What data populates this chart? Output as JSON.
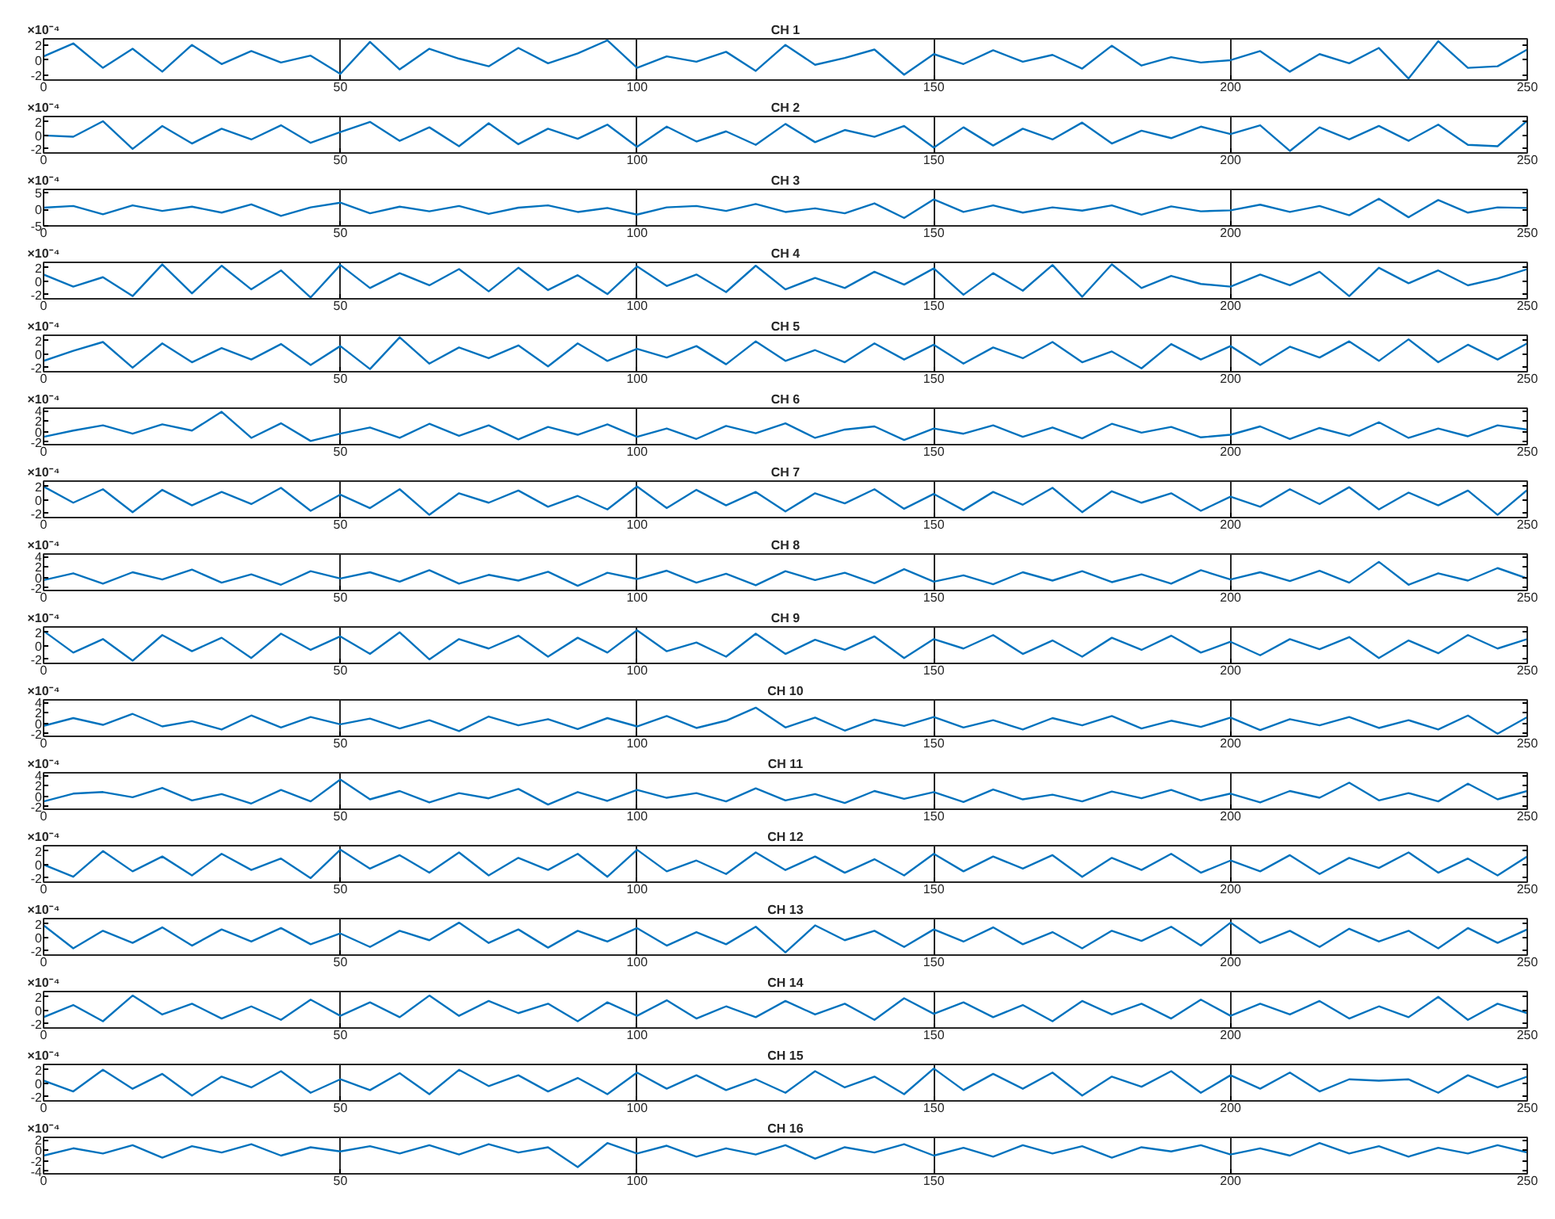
{
  "chart_data": [
    {
      "type": "line",
      "title": "CH 1",
      "annotations": [
        "×10⁻⁴"
      ],
      "grid": "x",
      "xlim": [
        0,
        250
      ],
      "xticks": [
        0,
        50,
        100,
        150,
        200,
        250
      ],
      "ylim": [
        -2.6,
        2.8
      ],
      "yticks": [
        -2,
        0,
        2
      ],
      "x": [
        0,
        5,
        10,
        15,
        20,
        25,
        30,
        35,
        40,
        45,
        50,
        55,
        60,
        65,
        70,
        75,
        80,
        85,
        90,
        95,
        100,
        105,
        110,
        115,
        120,
        125,
        130,
        135,
        140,
        145,
        150,
        155,
        160,
        165,
        170,
        175,
        180,
        185,
        190,
        195,
        200,
        205,
        210,
        215,
        220,
        225,
        230,
        235,
        240,
        245,
        250
      ],
      "series": [
        {
          "color": "#0072bd",
          "values": [
            0.5,
            2.2,
            -1.0,
            1.5,
            -1.5,
            2.0,
            -0.5,
            1.2,
            -0.3,
            0.6,
            -1.8,
            2.4,
            -1.2,
            1.5,
            0.2,
            -0.8,
            1.6,
            -0.4,
            0.9,
            2.6,
            -1.0,
            0.5,
            -0.2,
            1.1,
            -1.4,
            2.0,
            -0.6,
            0.3,
            1.4,
            -1.9,
            0.8,
            -0.5,
            1.3,
            -0.2,
            0.7,
            -1.1,
            1.9,
            -0.7,
            0.4,
            -0.3,
            0.0,
            1.2,
            -1.5,
            0.8,
            -0.4,
            1.6,
            -2.4,
            2.5,
            -1.0,
            -0.8,
            1.4
          ]
        }
      ]
    },
    {
      "type": "line",
      "title": "CH 2",
      "annotations": [
        "×10⁻⁴"
      ],
      "grid": "x",
      "xlim": [
        0,
        250
      ],
      "xticks": [
        0,
        50,
        100,
        150,
        200,
        250
      ],
      "ylim": [
        -2.6,
        2.8
      ],
      "yticks": [
        -2,
        0,
        2
      ],
      "x": [
        0,
        5,
        10,
        15,
        20,
        25,
        30,
        35,
        40,
        45,
        50,
        55,
        60,
        65,
        70,
        75,
        80,
        85,
        90,
        95,
        100,
        105,
        110,
        115,
        120,
        125,
        130,
        135,
        140,
        145,
        150,
        155,
        160,
        165,
        170,
        175,
        180,
        185,
        190,
        195,
        200,
        205,
        210,
        215,
        220,
        225,
        230,
        235,
        240,
        245,
        250
      ],
      "series": [
        {
          "color": "#0072bd",
          "values": [
            0.0,
            -0.2,
            2.1,
            -2.0,
            1.4,
            -1.2,
            1.0,
            -0.6,
            1.5,
            -1.1,
            0.5,
            2.0,
            -0.8,
            1.2,
            -1.6,
            1.8,
            -1.3,
            1.0,
            -0.5,
            1.6,
            -1.7,
            1.3,
            -0.9,
            0.6,
            -1.4,
            1.7,
            -1.0,
            0.8,
            -0.2,
            1.4,
            -1.8,
            1.2,
            -1.5,
            1.0,
            -0.6,
            1.9,
            -1.2,
            0.7,
            -0.4,
            1.3,
            0.2,
            1.5,
            -2.3,
            1.2,
            -0.6,
            1.4,
            -0.8,
            1.6,
            -1.4,
            -1.6,
            2.2
          ]
        }
      ]
    },
    {
      "type": "line",
      "title": "CH 3",
      "annotations": [
        "×10⁻⁴"
      ],
      "grid": "x",
      "xlim": [
        0,
        250
      ],
      "xticks": [
        0,
        50,
        100,
        150,
        200,
        250
      ],
      "ylim": [
        -5,
        6
      ],
      "yticks": [
        -5,
        0,
        5
      ],
      "x": [
        0,
        5,
        10,
        15,
        20,
        25,
        30,
        35,
        40,
        45,
        50,
        55,
        60,
        65,
        70,
        75,
        80,
        85,
        90,
        95,
        100,
        105,
        110,
        115,
        120,
        125,
        130,
        135,
        140,
        145,
        150,
        155,
        160,
        165,
        170,
        175,
        180,
        185,
        190,
        195,
        200,
        205,
        210,
        215,
        220,
        225,
        230,
        235,
        240,
        245,
        250
      ],
      "series": [
        {
          "color": "#0072bd",
          "values": [
            0.5,
            1.0,
            -1.5,
            1.2,
            -0.5,
            0.8,
            -1.0,
            1.5,
            -2.0,
            0.6,
            2.0,
            -1.2,
            0.8,
            -0.6,
            1.0,
            -1.4,
            0.5,
            1.2,
            -0.8,
            0.4,
            -1.6,
            0.6,
            1.0,
            -0.5,
            1.6,
            -0.8,
            0.3,
            -1.2,
            1.8,
            -2.6,
            3.0,
            -0.8,
            1.2,
            -1.0,
            0.6,
            -0.4,
            1.2,
            -1.6,
            0.9,
            -0.6,
            -0.3,
            1.4,
            -0.8,
            1.0,
            -1.8,
            3.2,
            -2.4,
            2.8,
            -1.0,
            0.6,
            0.4
          ]
        }
      ]
    },
    {
      "type": "line",
      "title": "CH 4",
      "annotations": [
        "×10⁻⁴"
      ],
      "grid": "x",
      "xlim": [
        0,
        250
      ],
      "xticks": [
        0,
        50,
        100,
        150,
        200,
        250
      ],
      "ylim": [
        -2.6,
        2.8
      ],
      "yticks": [
        -2,
        0,
        2
      ],
      "x": [
        0,
        5,
        10,
        15,
        20,
        25,
        30,
        35,
        40,
        45,
        50,
        55,
        60,
        65,
        70,
        75,
        80,
        85,
        90,
        95,
        100,
        105,
        110,
        115,
        120,
        125,
        130,
        135,
        140,
        145,
        150,
        155,
        160,
        165,
        170,
        175,
        180,
        185,
        190,
        195,
        200,
        205,
        210,
        215,
        220,
        225,
        230,
        235,
        240,
        245,
        250
      ],
      "series": [
        {
          "color": "#0072bd",
          "values": [
            1.0,
            -0.8,
            0.6,
            -2.2,
            2.5,
            -1.8,
            2.3,
            -1.2,
            1.6,
            -2.4,
            2.4,
            -1.0,
            1.2,
            -0.6,
            1.8,
            -1.5,
            2.0,
            -1.3,
            0.9,
            -1.9,
            2.2,
            -0.7,
            1.0,
            -1.6,
            2.3,
            -1.2,
            0.5,
            -1.0,
            1.4,
            -0.5,
            1.9,
            -2.0,
            1.2,
            -1.4,
            2.4,
            -2.3,
            2.5,
            -1.0,
            0.8,
            -0.4,
            -0.8,
            1.0,
            -0.6,
            1.4,
            -2.2,
            2.0,
            -0.3,
            1.6,
            -0.6,
            0.4,
            1.8
          ]
        }
      ]
    },
    {
      "type": "line",
      "title": "CH 5",
      "annotations": [
        "×10⁻⁴"
      ],
      "grid": "x",
      "xlim": [
        0,
        250
      ],
      "xticks": [
        0,
        50,
        100,
        150,
        200,
        250
      ],
      "ylim": [
        -2.6,
        2.8
      ],
      "yticks": [
        -2,
        0,
        2
      ],
      "x": [
        0,
        5,
        10,
        15,
        20,
        25,
        30,
        35,
        40,
        45,
        50,
        55,
        60,
        65,
        70,
        75,
        80,
        85,
        90,
        95,
        100,
        105,
        110,
        115,
        120,
        125,
        130,
        135,
        140,
        145,
        150,
        155,
        160,
        165,
        170,
        175,
        180,
        185,
        190,
        195,
        200,
        205,
        210,
        215,
        220,
        225,
        230,
        235,
        240,
        245,
        250
      ],
      "series": [
        {
          "color": "#0072bd",
          "values": [
            -1.0,
            0.5,
            1.8,
            -2.0,
            1.6,
            -1.2,
            0.9,
            -0.8,
            1.5,
            -1.6,
            1.2,
            -2.2,
            2.5,
            -1.4,
            1.0,
            -0.6,
            1.3,
            -1.8,
            1.6,
            -1.0,
            0.8,
            -0.5,
            1.2,
            -1.5,
            1.9,
            -1.0,
            0.6,
            -1.2,
            1.6,
            -0.8,
            1.4,
            -1.4,
            1.0,
            -0.6,
            1.8,
            -1.2,
            0.4,
            -2.1,
            1.5,
            -0.8,
            1.2,
            -1.6,
            1.1,
            -0.5,
            1.9,
            -1.0,
            2.2,
            -1.2,
            1.4,
            -0.8,
            1.6
          ]
        }
      ]
    },
    {
      "type": "line",
      "title": "CH 6",
      "annotations": [
        "×10⁻⁴"
      ],
      "grid": "x",
      "xlim": [
        0,
        250
      ],
      "xticks": [
        0,
        50,
        100,
        150,
        200,
        250
      ],
      "ylim": [
        -2.5,
        4.5
      ],
      "yticks": [
        -2,
        0,
        2,
        4
      ],
      "x": [
        0,
        5,
        10,
        15,
        20,
        25,
        30,
        35,
        40,
        45,
        50,
        55,
        60,
        65,
        70,
        75,
        80,
        85,
        90,
        95,
        100,
        105,
        110,
        115,
        120,
        125,
        130,
        135,
        140,
        145,
        150,
        155,
        160,
        165,
        170,
        175,
        180,
        185,
        190,
        195,
        200,
        205,
        210,
        215,
        220,
        225,
        230,
        235,
        240,
        245,
        250
      ],
      "series": [
        {
          "color": "#0072bd",
          "values": [
            -1.0,
            0.2,
            1.2,
            -0.4,
            1.4,
            0.2,
            3.8,
            -1.2,
            1.6,
            -1.8,
            -0.4,
            0.8,
            -1.2,
            1.5,
            -0.8,
            1.2,
            -1.5,
            0.9,
            -0.6,
            1.4,
            -1.0,
            0.6,
            -1.4,
            1.1,
            -0.3,
            1.6,
            -1.2,
            0.4,
            1.0,
            -1.6,
            0.6,
            -0.4,
            1.2,
            -1.0,
            0.8,
            -1.3,
            1.5,
            -0.2,
            0.9,
            -1.1,
            -0.6,
            1.0,
            -1.4,
            0.7,
            -0.8,
            1.8,
            -1.2,
            0.6,
            -0.9,
            1.2,
            0.4
          ]
        }
      ]
    },
    {
      "type": "line",
      "title": "CH 7",
      "annotations": [
        "×10⁻⁴"
      ],
      "grid": "x",
      "xlim": [
        0,
        250
      ],
      "xticks": [
        0,
        50,
        100,
        150,
        200,
        250
      ],
      "ylim": [
        -2.6,
        2.8
      ],
      "yticks": [
        -2,
        0,
        2
      ],
      "x": [
        0,
        5,
        10,
        15,
        20,
        25,
        30,
        35,
        40,
        45,
        50,
        55,
        60,
        65,
        70,
        75,
        80,
        85,
        90,
        95,
        100,
        105,
        110,
        115,
        120,
        125,
        130,
        135,
        140,
        145,
        150,
        155,
        160,
        165,
        170,
        175,
        180,
        185,
        190,
        195,
        200,
        205,
        210,
        215,
        220,
        225,
        230,
        235,
        240,
        245,
        250
      ],
      "series": [
        {
          "color": "#0072bd",
          "values": [
            2.0,
            -0.4,
            1.6,
            -1.8,
            1.5,
            -0.8,
            1.2,
            -0.6,
            1.8,
            -1.6,
            0.8,
            -1.2,
            1.6,
            -2.2,
            1.0,
            -0.4,
            1.4,
            -1.0,
            0.6,
            -1.4,
            2.0,
            -1.2,
            1.5,
            -0.8,
            1.2,
            -1.7,
            1.0,
            -0.5,
            1.6,
            -1.3,
            0.9,
            -1.5,
            1.2,
            -0.7,
            1.8,
            -1.8,
            1.3,
            -0.4,
            1.0,
            -1.6,
            0.5,
            -1.0,
            1.6,
            -0.6,
            1.9,
            -1.4,
            1.1,
            -0.8,
            1.4,
            -2.2,
            1.5
          ]
        }
      ]
    },
    {
      "type": "line",
      "title": "CH 8",
      "annotations": [
        "×10⁻⁴"
      ],
      "grid": "x",
      "xlim": [
        0,
        250
      ],
      "xticks": [
        0,
        50,
        100,
        150,
        200,
        250
      ],
      "ylim": [
        -2.5,
        4.5
      ],
      "yticks": [
        -2,
        0,
        2,
        4
      ],
      "x": [
        0,
        5,
        10,
        15,
        20,
        25,
        30,
        35,
        40,
        45,
        50,
        55,
        60,
        65,
        70,
        75,
        80,
        85,
        90,
        95,
        100,
        105,
        110,
        115,
        120,
        125,
        130,
        135,
        140,
        145,
        150,
        155,
        160,
        165,
        170,
        175,
        180,
        185,
        190,
        195,
        200,
        205,
        210,
        215,
        220,
        225,
        230,
        235,
        240,
        245,
        250
      ],
      "series": [
        {
          "color": "#0072bd",
          "values": [
            -0.5,
            0.8,
            -1.2,
            1.0,
            -0.4,
            1.5,
            -1.0,
            0.6,
            -1.4,
            1.2,
            -0.2,
            1.0,
            -0.8,
            1.4,
            -1.2,
            0.5,
            -0.6,
            1.1,
            -1.6,
            0.9,
            -0.3,
            1.3,
            -1.0,
            0.7,
            -1.5,
            1.2,
            -0.5,
            0.9,
            -1.1,
            1.6,
            -0.8,
            0.4,
            -1.3,
            1.0,
            -0.6,
            1.2,
            -0.9,
            0.6,
            -1.2,
            1.4,
            -0.4,
            1.0,
            -0.7,
            1.3,
            -1.0,
            3.0,
            -1.4,
            0.8,
            -0.6,
            1.8,
            -0.2
          ]
        }
      ]
    },
    {
      "type": "line",
      "title": "CH 9",
      "annotations": [
        "×10⁻⁴"
      ],
      "grid": "x",
      "xlim": [
        0,
        250
      ],
      "xticks": [
        0,
        50,
        100,
        150,
        200,
        250
      ],
      "ylim": [
        -2.6,
        2.8
      ],
      "yticks": [
        -2,
        0,
        2
      ],
      "x": [
        0,
        5,
        10,
        15,
        20,
        25,
        30,
        35,
        40,
        45,
        50,
        55,
        60,
        65,
        70,
        75,
        80,
        85,
        90,
        95,
        100,
        105,
        110,
        115,
        120,
        125,
        130,
        135,
        140,
        145,
        150,
        155,
        160,
        165,
        170,
        175,
        180,
        185,
        190,
        195,
        200,
        205,
        210,
        215,
        220,
        225,
        230,
        235,
        240,
        245,
        250
      ],
      "series": [
        {
          "color": "#0072bd",
          "values": [
            2.2,
            -1.0,
            1.0,
            -2.2,
            1.6,
            -0.8,
            1.2,
            -1.8,
            1.8,
            -0.6,
            1.4,
            -1.2,
            2.0,
            -2.0,
            1.0,
            -0.4,
            1.5,
            -1.6,
            1.2,
            -1.0,
            2.3,
            -0.8,
            0.5,
            -1.6,
            1.8,
            -1.2,
            0.9,
            -0.6,
            1.4,
            -1.8,
            1.0,
            -0.4,
            1.6,
            -1.2,
            0.8,
            -1.6,
            1.2,
            -0.6,
            1.5,
            -1.0,
            0.6,
            -1.4,
            1.0,
            -0.5,
            1.3,
            -1.8,
            0.8,
            -1.1,
            1.6,
            -0.4,
            1.0
          ]
        }
      ]
    },
    {
      "type": "line",
      "title": "CH 10",
      "annotations": [
        "×10⁻⁴"
      ],
      "grid": "x",
      "xlim": [
        0,
        250
      ],
      "xticks": [
        0,
        50,
        100,
        150,
        200,
        250
      ],
      "ylim": [
        -2.5,
        4.5
      ],
      "yticks": [
        -2,
        0,
        2,
        4
      ],
      "x": [
        0,
        5,
        10,
        15,
        20,
        25,
        30,
        35,
        40,
        45,
        50,
        55,
        60,
        65,
        70,
        75,
        80,
        85,
        90,
        95,
        100,
        105,
        110,
        115,
        120,
        125,
        130,
        135,
        140,
        145,
        150,
        155,
        160,
        165,
        170,
        175,
        180,
        185,
        190,
        195,
        200,
        205,
        210,
        215,
        220,
        225,
        230,
        235,
        240,
        245,
        250
      ],
      "series": [
        {
          "color": "#0072bd",
          "values": [
            -0.5,
            1.0,
            -0.3,
            1.8,
            -0.6,
            0.4,
            -1.2,
            1.5,
            -0.8,
            1.2,
            -0.2,
            0.9,
            -1.0,
            0.6,
            -1.5,
            1.3,
            -0.4,
            0.8,
            -1.1,
            1.0,
            -0.6,
            1.4,
            -0.9,
            0.5,
            3.0,
            -0.8,
            1.1,
            -1.4,
            0.7,
            -0.5,
            1.2,
            -0.8,
            0.6,
            -1.2,
            1.0,
            -0.4,
            1.4,
            -1.0,
            0.5,
            -0.7,
            1.1,
            -1.3,
            0.8,
            -0.4,
            1.2,
            -0.9,
            0.6,
            -1.2,
            1.5,
            -2.0,
            1.2
          ]
        }
      ]
    },
    {
      "type": "line",
      "title": "CH 11",
      "annotations": [
        "×10⁻⁴"
      ],
      "grid": "x",
      "xlim": [
        0,
        250
      ],
      "xticks": [
        0,
        50,
        100,
        150,
        200,
        250
      ],
      "ylim": [
        -2.5,
        4.5
      ],
      "yticks": [
        -2,
        0,
        2,
        4
      ],
      "x": [
        0,
        5,
        10,
        15,
        20,
        25,
        30,
        35,
        40,
        45,
        50,
        55,
        60,
        65,
        70,
        75,
        80,
        85,
        90,
        95,
        100,
        105,
        110,
        115,
        120,
        125,
        130,
        135,
        140,
        145,
        150,
        155,
        160,
        165,
        170,
        175,
        180,
        185,
        190,
        195,
        200,
        205,
        210,
        215,
        220,
        225,
        230,
        235,
        240,
        245,
        250
      ],
      "series": [
        {
          "color": "#0072bd",
          "values": [
            -1.0,
            0.5,
            0.8,
            -0.2,
            1.6,
            -0.8,
            0.4,
            -1.4,
            1.2,
            -1.0,
            3.2,
            -0.6,
            1.0,
            -1.2,
            0.6,
            -0.4,
            1.4,
            -1.6,
            0.8,
            -0.9,
            1.2,
            -0.3,
            0.6,
            -1.0,
            1.5,
            -0.8,
            0.4,
            -1.3,
            1.0,
            -0.5,
            0.8,
            -1.1,
            1.3,
            -0.6,
            0.3,
            -1.0,
            0.9,
            -0.4,
            1.2,
            -0.8,
            0.5,
            -1.2,
            1.0,
            -0.3,
            2.6,
            -0.8,
            0.6,
            -1.0,
            2.4,
            -0.6,
            1.0
          ]
        }
      ]
    },
    {
      "type": "line",
      "title": "CH 12",
      "annotations": [
        "×10⁻⁴"
      ],
      "grid": "x",
      "xlim": [
        0,
        250
      ],
      "xticks": [
        0,
        50,
        100,
        150,
        200,
        250
      ],
      "ylim": [
        -2.6,
        2.8
      ],
      "yticks": [
        -2,
        0,
        2
      ],
      "x": [
        0,
        5,
        10,
        15,
        20,
        25,
        30,
        35,
        40,
        45,
        50,
        55,
        60,
        65,
        70,
        75,
        80,
        85,
        90,
        95,
        100,
        105,
        110,
        115,
        120,
        125,
        130,
        135,
        140,
        145,
        150,
        155,
        160,
        165,
        170,
        175,
        180,
        185,
        190,
        195,
        200,
        205,
        210,
        215,
        220,
        225,
        230,
        235,
        240,
        245,
        250
      ],
      "series": [
        {
          "color": "#0072bd",
          "values": [
            0.0,
            -1.8,
            2.0,
            -1.0,
            1.2,
            -1.6,
            1.6,
            -0.8,
            0.9,
            -2.0,
            2.2,
            -0.6,
            1.4,
            -1.2,
            1.8,
            -1.6,
            1.0,
            -0.8,
            1.6,
            -1.8,
            2.2,
            -1.0,
            0.6,
            -1.4,
            1.8,
            -0.8,
            1.2,
            -1.2,
            0.8,
            -1.6,
            1.6,
            -1.0,
            1.2,
            -0.6,
            1.4,
            -1.8,
            1.0,
            -0.8,
            1.6,
            -1.2,
            0.6,
            -1.0,
            1.4,
            -1.4,
            1.0,
            -0.5,
            1.8,
            -1.2,
            0.9,
            -1.6,
            1.2
          ]
        }
      ]
    },
    {
      "type": "line",
      "title": "CH 13",
      "annotations": [
        "×10⁻⁴"
      ],
      "grid": "x",
      "xlim": [
        0,
        250
      ],
      "xticks": [
        0,
        50,
        100,
        150,
        200,
        250
      ],
      "ylim": [
        -2.6,
        2.8
      ],
      "yticks": [
        -2,
        0,
        2
      ],
      "x": [
        0,
        5,
        10,
        15,
        20,
        25,
        30,
        35,
        40,
        45,
        50,
        55,
        60,
        65,
        70,
        75,
        80,
        85,
        90,
        95,
        100,
        105,
        110,
        115,
        120,
        125,
        130,
        135,
        140,
        145,
        150,
        155,
        160,
        165,
        170,
        175,
        180,
        185,
        190,
        195,
        200,
        205,
        210,
        215,
        220,
        225,
        230,
        235,
        240,
        245,
        250
      ],
      "series": [
        {
          "color": "#0072bd",
          "values": [
            1.8,
            -1.6,
            1.0,
            -0.8,
            1.5,
            -1.2,
            1.2,
            -0.6,
            1.4,
            -1.0,
            0.6,
            -1.4,
            1.0,
            -0.4,
            2.2,
            -0.8,
            1.2,
            -1.5,
            1.0,
            -0.6,
            1.4,
            -1.2,
            0.8,
            -1.0,
            1.6,
            -2.2,
            1.8,
            -0.4,
            1.0,
            -1.4,
            1.2,
            -0.6,
            1.5,
            -1.0,
            0.8,
            -1.6,
            1.0,
            -0.5,
            1.6,
            -1.2,
            2.2,
            -0.8,
            1.0,
            -1.4,
            1.3,
            -0.6,
            1.0,
            -1.6,
            1.4,
            -0.8,
            1.2
          ]
        }
      ]
    },
    {
      "type": "line",
      "title": "CH 14",
      "annotations": [
        "×10⁻⁴"
      ],
      "grid": "x",
      "xlim": [
        0,
        250
      ],
      "xticks": [
        0,
        50,
        100,
        150,
        200,
        250
      ],
      "ylim": [
        -2.6,
        2.8
      ],
      "yticks": [
        -2,
        0,
        2
      ],
      "x": [
        0,
        5,
        10,
        15,
        20,
        25,
        30,
        35,
        40,
        45,
        50,
        55,
        60,
        65,
        70,
        75,
        80,
        85,
        90,
        95,
        100,
        105,
        110,
        115,
        120,
        125,
        130,
        135,
        140,
        145,
        150,
        155,
        160,
        165,
        170,
        175,
        180,
        185,
        190,
        195,
        200,
        205,
        210,
        215,
        220,
        225,
        230,
        235,
        240,
        245,
        250
      ],
      "series": [
        {
          "color": "#0072bd",
          "values": [
            -1.0,
            0.8,
            -1.6,
            2.2,
            -0.6,
            1.0,
            -1.2,
            0.6,
            -1.4,
            1.6,
            -0.8,
            1.2,
            -1.0,
            2.2,
            -0.8,
            1.4,
            -0.4,
            1.0,
            -1.6,
            1.2,
            -0.8,
            1.5,
            -1.2,
            0.6,
            -1.0,
            1.4,
            -0.6,
            1.0,
            -1.4,
            1.8,
            -0.5,
            1.2,
            -1.0,
            0.8,
            -1.6,
            1.4,
            -0.6,
            1.0,
            -1.2,
            1.6,
            -0.8,
            1.0,
            -0.6,
            1.4,
            -1.2,
            0.6,
            -1.0,
            2.0,
            -1.4,
            1.0,
            -0.4
          ]
        }
      ]
    },
    {
      "type": "line",
      "title": "CH 15",
      "annotations": [
        "×10⁻⁴"
      ],
      "grid": "x",
      "xlim": [
        0,
        250
      ],
      "xticks": [
        0,
        50,
        100,
        150,
        200,
        250
      ],
      "ylim": [
        -2.6,
        2.8
      ],
      "yticks": [
        -2,
        0,
        2
      ],
      "x": [
        0,
        5,
        10,
        15,
        20,
        25,
        30,
        35,
        40,
        45,
        50,
        55,
        60,
        65,
        70,
        75,
        80,
        85,
        90,
        95,
        100,
        105,
        110,
        115,
        120,
        125,
        130,
        135,
        140,
        145,
        150,
        155,
        160,
        165,
        170,
        175,
        180,
        185,
        190,
        195,
        200,
        205,
        210,
        215,
        220,
        225,
        230,
        235,
        240,
        245,
        250
      ],
      "series": [
        {
          "color": "#0072bd",
          "values": [
            0.4,
            -1.2,
            2.0,
            -0.8,
            1.4,
            -1.8,
            1.0,
            -0.6,
            1.8,
            -1.4,
            0.6,
            -1.0,
            1.5,
            -1.6,
            2.0,
            -0.4,
            1.2,
            -1.2,
            0.8,
            -1.6,
            1.6,
            -0.8,
            1.2,
            -1.0,
            0.6,
            -1.4,
            1.8,
            -0.6,
            1.0,
            -1.6,
            2.2,
            -1.0,
            1.4,
            -0.8,
            1.6,
            -1.8,
            1.0,
            -0.5,
            1.8,
            -1.4,
            1.2,
            -0.8,
            1.6,
            -1.2,
            0.6,
            0.4,
            0.6,
            -1.4,
            1.2,
            -0.6,
            1.0
          ]
        }
      ]
    },
    {
      "type": "line",
      "title": "CH 16",
      "annotations": [
        "×10⁻⁴"
      ],
      "grid": "x",
      "xlim": [
        0,
        250
      ],
      "xticks": [
        0,
        50,
        100,
        150,
        200,
        250
      ],
      "ylim": [
        -4.5,
        2.5
      ],
      "yticks": [
        -4,
        -2,
        0,
        2
      ],
      "x": [
        0,
        5,
        10,
        15,
        20,
        25,
        30,
        35,
        40,
        45,
        50,
        55,
        60,
        65,
        70,
        75,
        80,
        85,
        90,
        95,
        100,
        105,
        110,
        115,
        120,
        125,
        130,
        135,
        140,
        145,
        150,
        155,
        160,
        165,
        170,
        175,
        180,
        185,
        190,
        195,
        200,
        205,
        210,
        215,
        220,
        225,
        230,
        235,
        240,
        245,
        250
      ],
      "series": [
        {
          "color": "#0072bd",
          "values": [
            -1.0,
            0.4,
            -0.6,
            1.0,
            -1.4,
            0.8,
            -0.4,
            1.2,
            -1.0,
            0.6,
            -0.2,
            0.8,
            -0.6,
            1.0,
            -0.8,
            1.2,
            -0.4,
            0.6,
            -3.2,
            1.4,
            -0.6,
            0.9,
            -1.2,
            0.4,
            -0.8,
            1.0,
            -1.6,
            0.6,
            -0.4,
            1.2,
            -1.0,
            0.5,
            -1.2,
            1.0,
            -0.6,
            0.8,
            -1.4,
            0.6,
            -0.2,
            1.0,
            -0.8,
            0.4,
            -1.0,
            1.4,
            -0.6,
            0.8,
            -1.2,
            0.5,
            -0.6,
            1.0,
            -0.4
          ]
        }
      ]
    }
  ]
}
